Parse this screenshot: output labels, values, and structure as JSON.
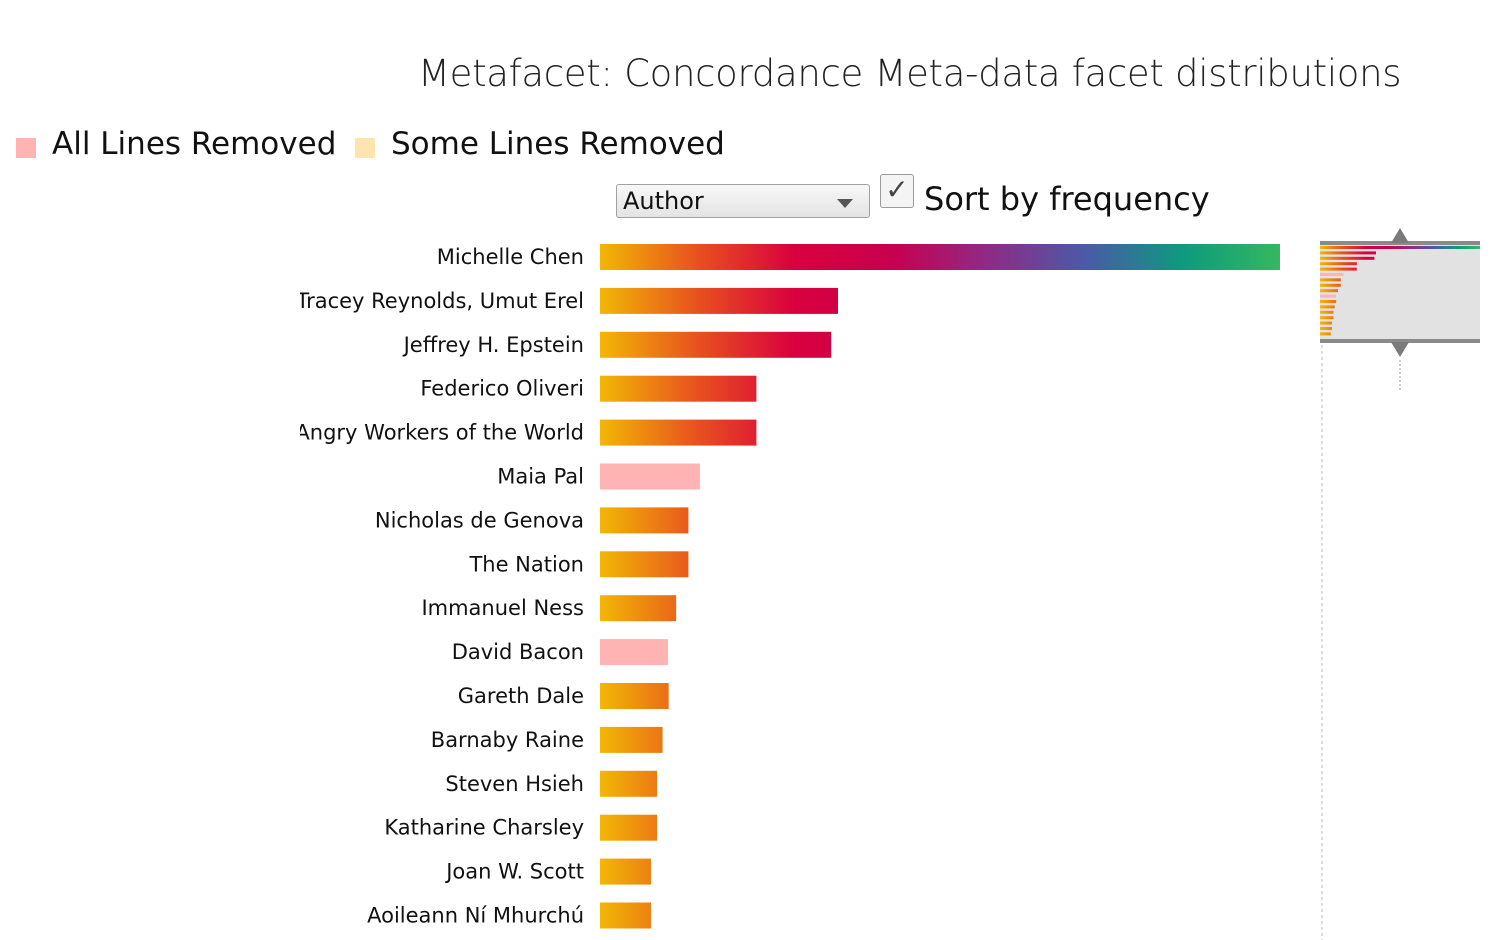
{
  "title": "Metafacet: Concordance Meta-data facet distributions",
  "legend": {
    "items": [
      {
        "label": "All Lines Removed",
        "color": "#ffb3b3"
      },
      {
        "label": "Some Lines Removed",
        "color": "#ffe4b0"
      }
    ]
  },
  "controls": {
    "facet_selected": "Author",
    "sort_label": "Sort by frequency",
    "sort_checked": true
  },
  "colors": {
    "gradient_stops": [
      "#f2b705",
      "#e8511e",
      "#d9003e",
      "#c8004f",
      "#8e2b86",
      "#4a5aa8",
      "#0e9a7e",
      "#35b860"
    ],
    "all_removed": "#ffb3b3"
  },
  "chart_data": {
    "type": "bar",
    "orientation": "horizontal",
    "title": "",
    "xlabel": "",
    "ylabel": "",
    "xlim": [
      0,
      100
    ],
    "categories": [
      "Michelle Chen",
      "Tracey Reynolds, Umut Erel",
      "Jeffrey H. Epstein",
      "Federico Oliveri",
      "Angry Workers of the World",
      "Maia Pal",
      "Nicholas de Genova",
      "The Nation",
      "Immanuel Ness",
      "David Bacon",
      "Gareth Dale",
      "Barnaby Raine",
      "Steven Hsieh",
      "Katharine Charsley",
      "Joan W. Scott",
      "Aoileann Ní Mhurchú"
    ],
    "values": [
      100,
      35,
      34,
      23,
      23,
      14.7,
      13,
      13,
      11.2,
      10,
      10.1,
      9.2,
      8.4,
      8.4,
      7.5,
      7.5
    ],
    "status": [
      "some",
      "some",
      "some",
      "some",
      "some",
      "all",
      "some",
      "some",
      "some",
      "all",
      "some",
      "some",
      "some",
      "some",
      "some",
      "some"
    ]
  }
}
